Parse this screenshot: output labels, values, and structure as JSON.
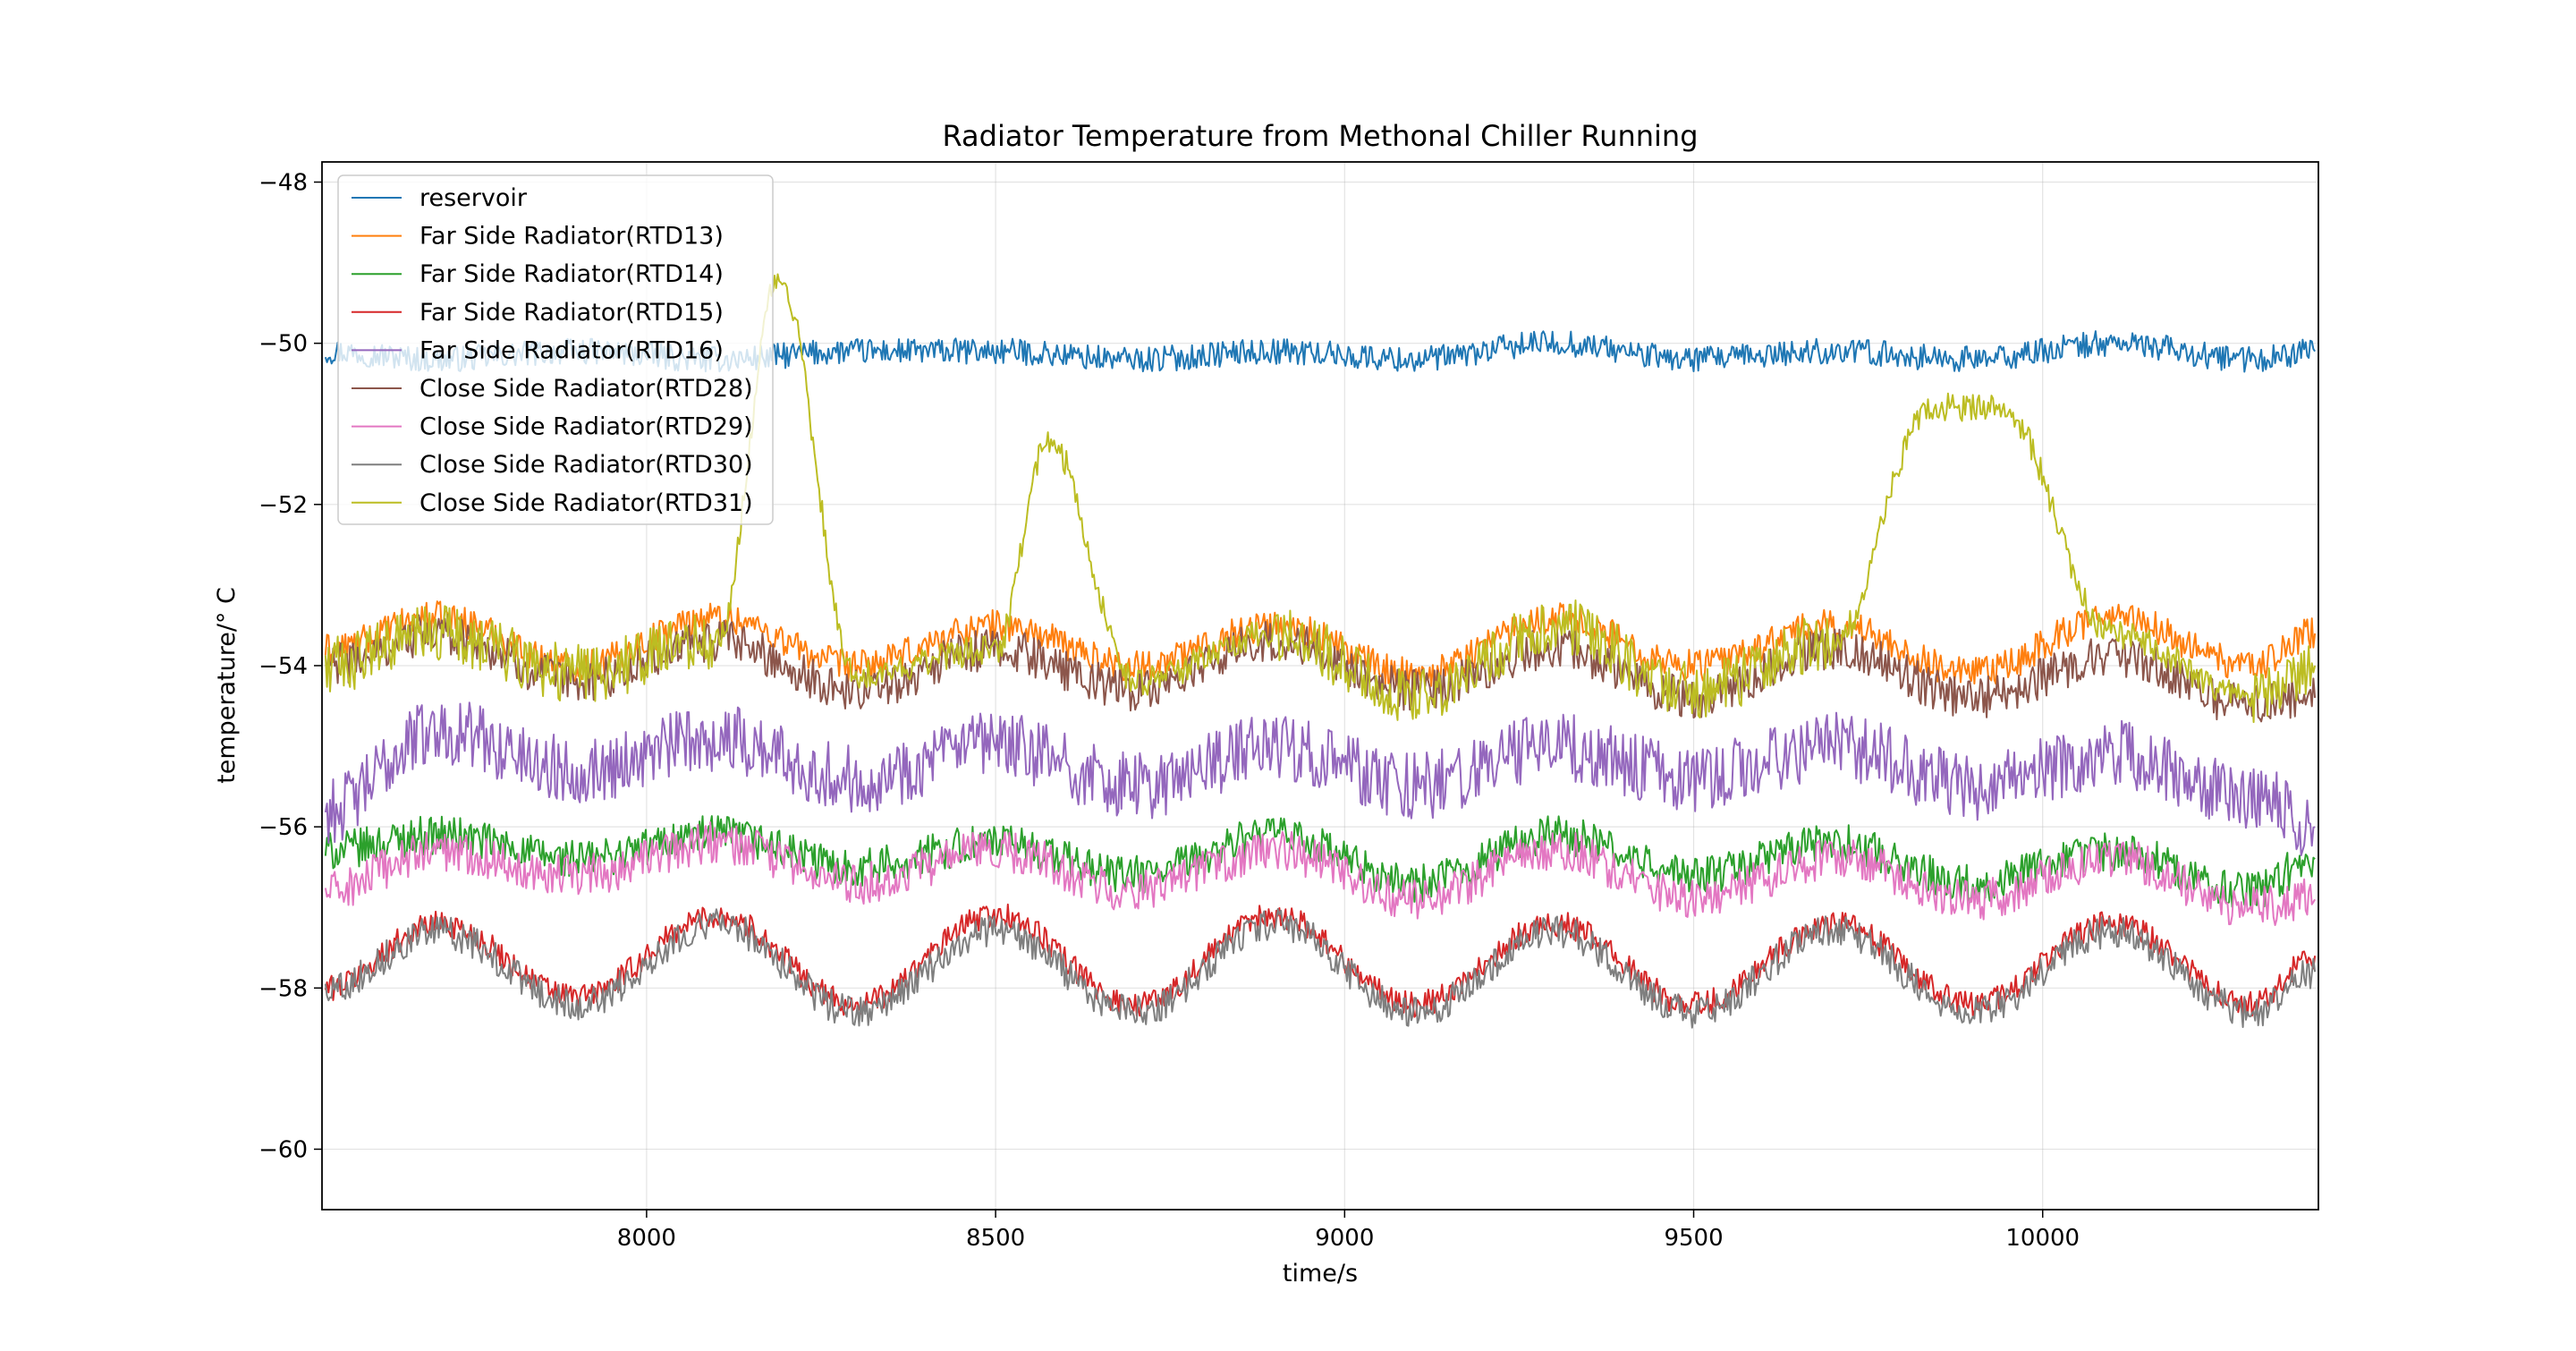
{
  "chart_data": {
    "type": "line",
    "title": "Radiator Temperature from Methonal Chiller Running",
    "xlabel": "time/s",
    "ylabel": "temperature/$^\\circ C$",
    "ylabel_display": "temperature/° C",
    "xlim": [
      7535,
      10395
    ],
    "ylim": [
      -60.75,
      -47.75
    ],
    "xticks": [
      8000,
      8500,
      9000,
      9500,
      10000
    ],
    "yticks": [
      -48,
      -50,
      -52,
      -54,
      -56,
      -58,
      -60
    ],
    "xtick_labels": [
      "8000",
      "8500",
      "9000",
      "9500",
      "10000"
    ],
    "ytick_labels": [
      "−48",
      "−50",
      "−52",
      "−54",
      "−56",
      "−58",
      "−60"
    ],
    "grid": true,
    "legend_position": "upper-left",
    "series": [
      {
        "name": "reservoir",
        "color": "#1f77b4",
        "x": [
          7540,
          7700,
          7900,
          8100,
          8300,
          8500,
          8700,
          8900,
          9100,
          9300,
          9500,
          9700,
          9900,
          10100,
          10300,
          10390
        ],
        "y": [
          -50.1,
          -50.2,
          -50.1,
          -50.2,
          -50.1,
          -50.1,
          -50.2,
          -50.1,
          -50.2,
          -50.0,
          -50.2,
          -50.1,
          -50.2,
          -50.0,
          -50.2,
          -50.1
        ]
      },
      {
        "name": "Far Side Radiator(RTD13)",
        "color": "#ff7f0e",
        "x": [
          7540,
          7700,
          7900,
          8100,
          8300,
          8500,
          8700,
          8900,
          9100,
          9300,
          9500,
          9700,
          9900,
          10100,
          10300,
          10390
        ],
        "y": [
          -53.8,
          -53.4,
          -54.0,
          -53.4,
          -54.0,
          -53.5,
          -54.0,
          -53.5,
          -54.1,
          -53.4,
          -54.0,
          -53.5,
          -54.1,
          -53.4,
          -54.0,
          -53.6
        ]
      },
      {
        "name": "Far Side Radiator(RTD14)",
        "color": "#2ca02c",
        "x": [
          7540,
          7700,
          7900,
          8100,
          8300,
          8500,
          8700,
          8900,
          9100,
          9300,
          9500,
          9700,
          9900,
          10100,
          10300,
          10390
        ],
        "y": [
          -56.3,
          -56.1,
          -56.4,
          -56.1,
          -56.5,
          -56.2,
          -56.6,
          -56.1,
          -56.7,
          -56.1,
          -56.6,
          -56.2,
          -56.7,
          -56.3,
          -56.8,
          -56.4
        ]
      },
      {
        "name": "Far Side Radiator(RTD15)",
        "color": "#d62728",
        "x": [
          7540,
          7700,
          7900,
          8100,
          8300,
          8500,
          8700,
          8900,
          9100,
          9300,
          9500,
          9700,
          9900,
          10100,
          10300,
          10390
        ],
        "y": [
          -58.0,
          -57.2,
          -58.1,
          -57.1,
          -58.2,
          -57.1,
          -58.2,
          -57.1,
          -58.2,
          -57.2,
          -58.2,
          -57.2,
          -58.2,
          -57.2,
          -58.2,
          -57.6
        ]
      },
      {
        "name": "Far Side Radiator(RTD16)",
        "color": "#9467bd",
        "x": [
          7540,
          7700,
          7900,
          8100,
          8300,
          8500,
          8700,
          8900,
          9100,
          9300,
          9500,
          9700,
          9900,
          10100,
          10300,
          10390
        ],
        "y": [
          -55.8,
          -54.8,
          -55.3,
          -54.9,
          -55.4,
          -55.0,
          -55.5,
          -55.0,
          -55.5,
          -55.0,
          -55.4,
          -55.0,
          -55.5,
          -55.1,
          -55.6,
          -56.0
        ]
      },
      {
        "name": "Close Side Radiator(RTD28)",
        "color": "#8c564b",
        "x": [
          7540,
          7700,
          7900,
          8100,
          8300,
          8500,
          8700,
          8900,
          9100,
          9300,
          9500,
          9700,
          9900,
          10100,
          10300,
          10390
        ],
        "y": [
          -54.0,
          -53.6,
          -54.2,
          -53.7,
          -54.3,
          -53.8,
          -54.3,
          -53.7,
          -54.3,
          -53.8,
          -54.4,
          -53.8,
          -54.4,
          -53.9,
          -54.5,
          -54.4
        ]
      },
      {
        "name": "Close Side Radiator(RTD29)",
        "color": "#e377c2",
        "x": [
          7540,
          7700,
          7900,
          8100,
          8300,
          8500,
          8700,
          8900,
          9100,
          9300,
          9500,
          9700,
          9900,
          10100,
          10300,
          10390
        ],
        "y": [
          -56.8,
          -56.3,
          -56.6,
          -56.2,
          -56.7,
          -56.3,
          -56.8,
          -56.3,
          -56.9,
          -56.3,
          -56.9,
          -56.4,
          -56.9,
          -56.4,
          -57.0,
          -56.9
        ]
      },
      {
        "name": "Close Side Radiator(RTD30)",
        "color": "#7f7f7f",
        "x": [
          7540,
          7700,
          7900,
          8100,
          8300,
          8500,
          8700,
          8900,
          9100,
          9300,
          9500,
          9700,
          9900,
          10100,
          10300,
          10390
        ],
        "y": [
          -58.0,
          -57.3,
          -58.2,
          -57.2,
          -58.3,
          -57.3,
          -58.3,
          -57.2,
          -58.3,
          -57.3,
          -58.3,
          -57.3,
          -58.3,
          -57.3,
          -58.3,
          -57.8
        ]
      },
      {
        "name": "Close Side Radiator(RTD31)",
        "color": "#bcbd22",
        "x": [
          7540,
          7700,
          7900,
          8100,
          8190,
          8300,
          8500,
          8575,
          8700,
          8900,
          9100,
          9300,
          9500,
          9700,
          9840,
          9940,
          10100,
          10300,
          10390
        ],
        "y": [
          -54.0,
          -53.6,
          -54.1,
          -53.7,
          -49.2,
          -54.1,
          -53.8,
          -51.2,
          -54.2,
          -53.6,
          -54.4,
          -53.5,
          -54.3,
          -53.7,
          -50.8,
          -50.8,
          -53.6,
          -54.4,
          -54.0
        ]
      }
    ]
  }
}
